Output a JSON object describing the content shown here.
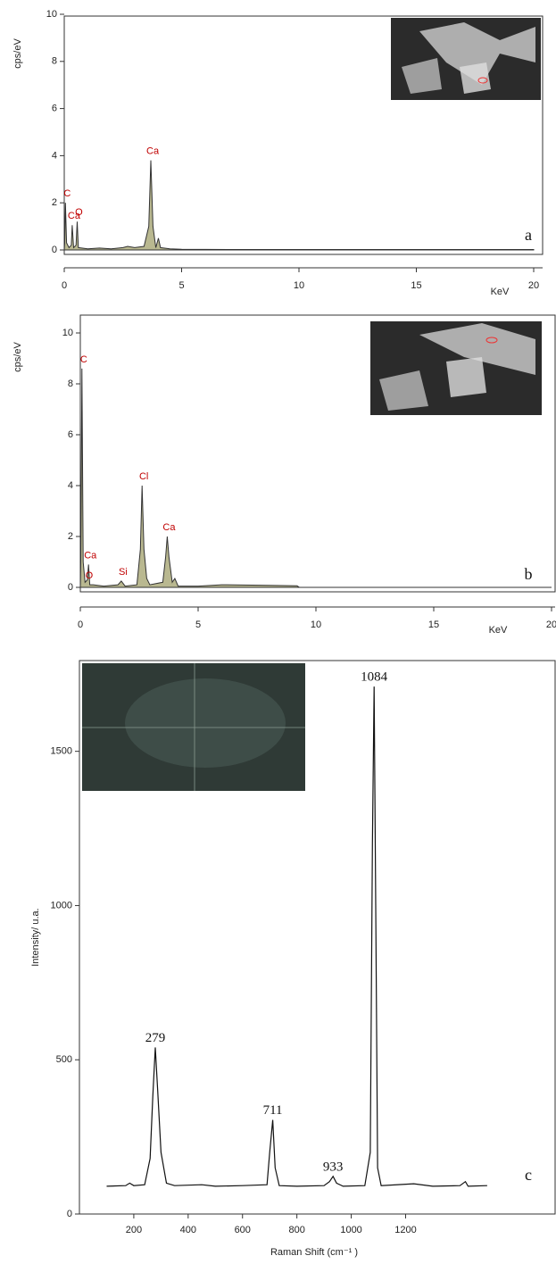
{
  "chart_data": [
    {
      "type": "area",
      "ylabel": "cps/eV",
      "xlabel": "KeV",
      "panel_label": "a",
      "color": "#b9b890",
      "line_color": "#333",
      "xlim": [
        0,
        20
      ],
      "ylim": [
        0,
        10
      ],
      "xticks": [
        0,
        5,
        10,
        15,
        20
      ],
      "yticks": [
        0,
        2,
        4,
        6,
        8,
        10
      ],
      "x": [
        0,
        0.02,
        0.05,
        0.1,
        0.2,
        0.3,
        0.34,
        0.4,
        0.5,
        0.55,
        0.6,
        1,
        1.5,
        2,
        2.5,
        2.7,
        3,
        3.4,
        3.6,
        3.69,
        3.78,
        3.9,
        4.01,
        4.1,
        4.5,
        5,
        7,
        10,
        15,
        20
      ],
      "values": [
        0,
        0.3,
        2.0,
        0.3,
        0.1,
        0.2,
        1.05,
        0.1,
        0.2,
        1.2,
        0.1,
        0.05,
        0.08,
        0.05,
        0.1,
        0.15,
        0.1,
        0.15,
        1.0,
        3.8,
        1.0,
        0.1,
        0.5,
        0.1,
        0.05,
        0.03,
        0.02,
        0.02,
        0.02,
        0.02
      ],
      "annotations": [
        {
          "text": "C",
          "x": 0.05,
          "y": 2.0
        },
        {
          "text": "Ca",
          "x": 0.34,
          "y": 1.05
        },
        {
          "text": "O",
          "x": 0.55,
          "y": 1.2
        },
        {
          "text": "Ca",
          "x": 3.69,
          "y": 3.8
        }
      ]
    },
    {
      "type": "area",
      "ylabel": "cps/eV",
      "xlabel": "KeV",
      "panel_label": "b",
      "color": "#b9b890",
      "line_color": "#333",
      "xlim": [
        0,
        20
      ],
      "ylim": [
        0,
        10
      ],
      "xticks": [
        0,
        5,
        10,
        15,
        20
      ],
      "yticks": [
        0,
        2,
        4,
        6,
        8,
        10
      ],
      "x": [
        0,
        0.02,
        0.07,
        0.12,
        0.2,
        0.3,
        0.35,
        0.4,
        0.55,
        1,
        1.6,
        1.74,
        1.9,
        2.4,
        2.55,
        2.62,
        2.7,
        2.82,
        2.95,
        3.5,
        3.62,
        3.69,
        3.76,
        3.9,
        4.01,
        4.15,
        5,
        6,
        8,
        9.2,
        9.3,
        20
      ],
      "values": [
        0,
        1,
        8.6,
        1,
        0.2,
        0.3,
        0.9,
        0.1,
        0.1,
        0.05,
        0.1,
        0.25,
        0.05,
        0.1,
        1.5,
        4.0,
        1.5,
        0.35,
        0.1,
        0.2,
        1.2,
        2.0,
        1.2,
        0.2,
        0.35,
        0.05,
        0.05,
        0.1,
        0.08,
        0.06,
        0,
        0
      ],
      "annotations": [
        {
          "text": "C",
          "x": 0.07,
          "y": 8.6
        },
        {
          "text": "Ca",
          "x": 0.35,
          "y": 0.9
        },
        {
          "text": "O",
          "x": 0.3,
          "y": 0.1
        },
        {
          "text": "Si",
          "x": 1.74,
          "y": 0.25
        },
        {
          "text": "Cl",
          "x": 2.62,
          "y": 4.0
        },
        {
          "text": "Ca",
          "x": 3.69,
          "y": 2.0
        }
      ]
    },
    {
      "type": "line",
      "ylabel": "Intensity/ u.a.",
      "xlabel": "Raman Shift (cm⁻¹ )",
      "panel_label": "c",
      "line_color": "#111",
      "xlim": [
        0,
        1750
      ],
      "ylim": [
        0,
        1800
      ],
      "xticks": [
        200,
        400,
        600,
        800,
        1000,
        1200
      ],
      "yticks": [
        0,
        500,
        1000,
        1500
      ],
      "x": [
        100,
        170,
        185,
        200,
        240,
        260,
        270,
        279,
        288,
        300,
        320,
        350,
        450,
        500,
        600,
        690,
        700,
        711,
        720,
        735,
        800,
        900,
        920,
        933,
        946,
        970,
        1050,
        1070,
        1078,
        1084,
        1090,
        1097,
        1110,
        1230,
        1300,
        1400,
        1420,
        1430,
        1500
      ],
      "values": [
        90,
        92,
        100,
        92,
        95,
        180,
        380,
        540,
        400,
        200,
        100,
        92,
        95,
        90,
        92,
        95,
        200,
        305,
        150,
        92,
        90,
        92,
        105,
        122,
        100,
        90,
        92,
        200,
        1200,
        1710,
        1000,
        150,
        92,
        98,
        90,
        92,
        105,
        90,
        92
      ],
      "annotations": [
        {
          "text": "279",
          "x": 279,
          "y": 540
        },
        {
          "text": "711",
          "x": 711,
          "y": 305
        },
        {
          "text": "933",
          "x": 933,
          "y": 122
        },
        {
          "text": "1084",
          "x": 1084,
          "y": 1710
        }
      ]
    }
  ]
}
